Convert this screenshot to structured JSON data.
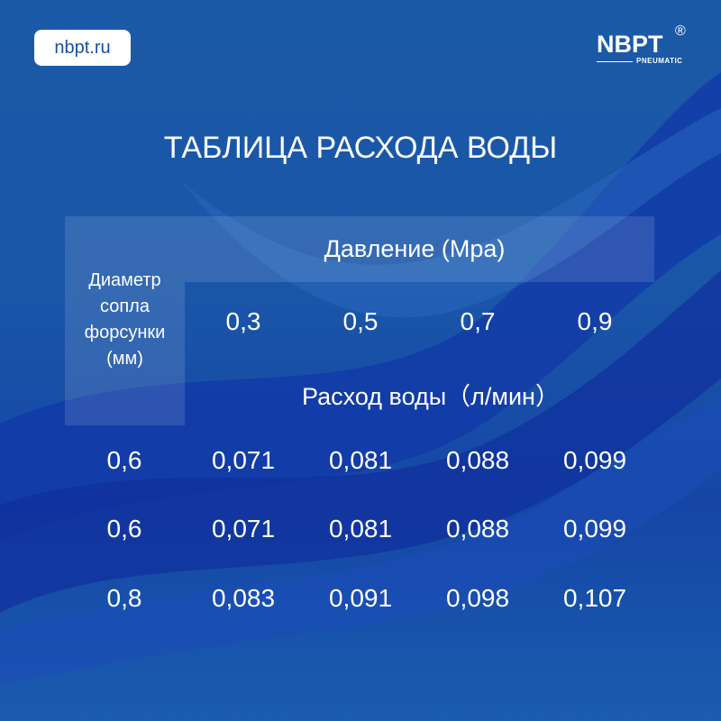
{
  "site_badge": "nbpt.ru",
  "logo": {
    "word": "NBPT",
    "registered": "®",
    "sub": "PNEUMATIC"
  },
  "title": "ТАБЛИЦА РАСХОДА ВОДЫ",
  "table": {
    "pressure_header": "Давление (Mpa)",
    "diameter_header": "Диаметр сопла форсунки (мм)",
    "diameter_header_lines": [
      "Диаметр",
      "сопла",
      "форсунки",
      "(мм)"
    ],
    "flow_header": "Расход воды（л/мин）",
    "pressures": [
      "0,3",
      "0,5",
      "0,7",
      "0,9"
    ],
    "rows": [
      {
        "diameter": "0,6",
        "values": [
          "0,071",
          "0,081",
          "0,088",
          "0,099"
        ]
      },
      {
        "diameter": "0,6",
        "values": [
          "0,071",
          "0,081",
          "0,088",
          "0,099"
        ]
      },
      {
        "diameter": "0,8",
        "values": [
          "0,083",
          "0,091",
          "0,098",
          "0,107"
        ]
      }
    ]
  },
  "colors": {
    "background": "#1a56a8",
    "badge_text": "#1a4f9c"
  }
}
